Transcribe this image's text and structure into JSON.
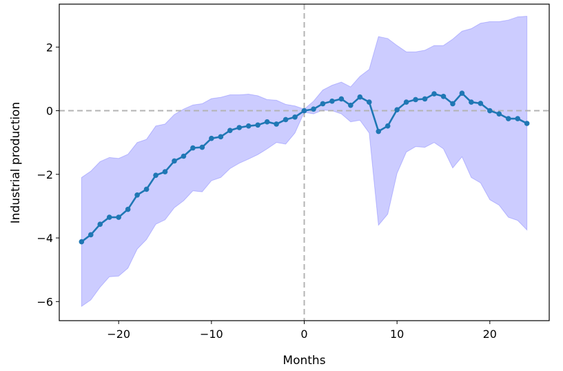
{
  "chart_data": {
    "type": "line",
    "title": "",
    "xlabel": "Months",
    "ylabel": "Industrial production",
    "xlim": [
      -26.4,
      26.4
    ],
    "ylim": [
      -6.6,
      3.35
    ],
    "xticks": [
      -20,
      -10,
      0,
      10,
      20
    ],
    "xtick_labels": [
      "−20",
      "−10",
      "0",
      "10",
      "20"
    ],
    "yticks": [
      -6,
      -4,
      -2,
      0,
      2
    ],
    "ytick_labels": [
      "−6",
      "−4",
      "−2",
      "0",
      "2"
    ],
    "reference_lines": {
      "x": 0,
      "y": 0,
      "style": "dashed",
      "color": "#b3b3b3"
    },
    "colors": {
      "line": "#1f77b4",
      "band": "#0000ff",
      "band_opacity": 0.2
    },
    "x": [
      -24,
      -23,
      -22,
      -21,
      -20,
      -19,
      -18,
      -17,
      -16,
      -15,
      -14,
      -13,
      -12,
      -11,
      -10,
      -9,
      -8,
      -7,
      -6,
      -5,
      -4,
      -3,
      -2,
      -1,
      0,
      1,
      2,
      3,
      4,
      5,
      6,
      7,
      8,
      9,
      10,
      11,
      12,
      13,
      14,
      15,
      16,
      17,
      18,
      19,
      20,
      21,
      22,
      23,
      24
    ],
    "series": [
      {
        "values": [
          -4.12,
          -3.9,
          -3.57,
          -3.35,
          -3.35,
          -3.1,
          -2.65,
          -2.47,
          -2.03,
          -1.92,
          -1.58,
          -1.43,
          -1.17,
          -1.15,
          -0.87,
          -0.82,
          -0.62,
          -0.53,
          -0.48,
          -0.45,
          -0.35,
          -0.42,
          -0.28,
          -0.2,
          0.0,
          0.05,
          0.22,
          0.3,
          0.37,
          0.17,
          0.43,
          0.27,
          -0.65,
          -0.48,
          0.03,
          0.27,
          0.35,
          0.37,
          0.53,
          0.45,
          0.22,
          0.55,
          0.27,
          0.23,
          0.0,
          -0.1,
          -0.25,
          -0.25,
          -0.4
        ],
        "lower": [
          -6.15,
          -5.95,
          -5.55,
          -5.22,
          -5.2,
          -4.95,
          -4.35,
          -4.05,
          -3.57,
          -3.43,
          -3.05,
          -2.83,
          -2.52,
          -2.55,
          -2.2,
          -2.1,
          -1.82,
          -1.65,
          -1.52,
          -1.38,
          -1.2,
          -1.0,
          -1.05,
          -0.7,
          -0.05,
          -0.1,
          0.02,
          0.0,
          -0.1,
          -0.35,
          -0.3,
          -0.7,
          -3.6,
          -3.25,
          -1.97,
          -1.3,
          -1.13,
          -1.15,
          -1.0,
          -1.2,
          -1.8,
          -1.45,
          -2.1,
          -2.27,
          -2.8,
          -2.97,
          -3.35,
          -3.45,
          -3.75
        ],
        "upper": [
          -2.1,
          -1.9,
          -1.6,
          -1.47,
          -1.5,
          -1.37,
          -1.0,
          -0.9,
          -0.48,
          -0.42,
          -0.12,
          0.05,
          0.18,
          0.22,
          0.38,
          0.42,
          0.5,
          0.5,
          0.52,
          0.47,
          0.35,
          0.33,
          0.2,
          0.15,
          0.05,
          0.3,
          0.65,
          0.8,
          0.9,
          0.75,
          1.08,
          1.3,
          2.33,
          2.27,
          2.05,
          1.85,
          1.85,
          1.9,
          2.05,
          2.05,
          2.25,
          2.5,
          2.58,
          2.75,
          2.8,
          2.8,
          2.85,
          2.95,
          2.97
        ]
      }
    ]
  }
}
